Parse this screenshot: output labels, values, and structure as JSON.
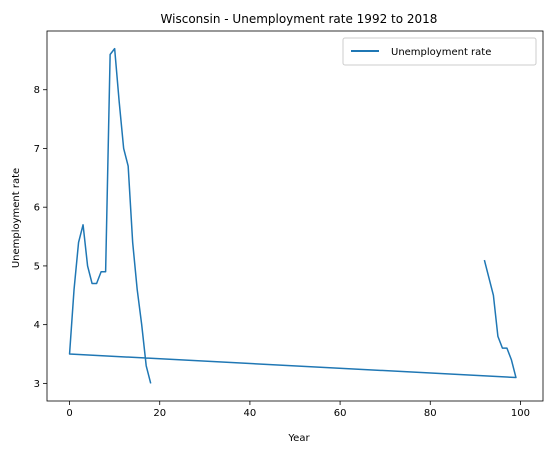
{
  "chart_data": {
    "type": "line",
    "title": "Wisconsin - Unemployment rate 1992 to 2018",
    "xlabel": "Year",
    "ylabel": "Unemployment rate",
    "xlim": [
      -5,
      105
    ],
    "ylim": [
      2.7,
      9.0
    ],
    "xticks": [
      0,
      20,
      40,
      60,
      80,
      100
    ],
    "xtick_labels": [
      "0",
      "20",
      "40",
      "60",
      "80",
      "100"
    ],
    "yticks": [
      3,
      4,
      5,
      6,
      7,
      8
    ],
    "ytick_labels": [
      "3",
      "4",
      "5",
      "6",
      "7",
      "8"
    ],
    "grid": false,
    "legend_position": "upper right",
    "series": [
      {
        "name": "Unemployment rate",
        "color": "#1f77b4",
        "x": [
          92,
          93,
          94,
          95,
          96,
          97,
          98,
          99,
          0,
          1,
          2,
          3,
          4,
          5,
          6,
          7,
          8,
          9,
          10,
          11,
          12,
          13,
          14,
          15,
          16,
          17,
          18
        ],
        "y": [
          5.1,
          4.8,
          4.5,
          3.8,
          3.6,
          3.6,
          3.4,
          3.1,
          3.5,
          4.6,
          5.4,
          5.7,
          5.0,
          4.7,
          4.7,
          4.9,
          4.9,
          8.6,
          8.7,
          7.8,
          7.0,
          6.7,
          5.4,
          4.6,
          4.0,
          3.3,
          3.0
        ]
      }
    ]
  }
}
